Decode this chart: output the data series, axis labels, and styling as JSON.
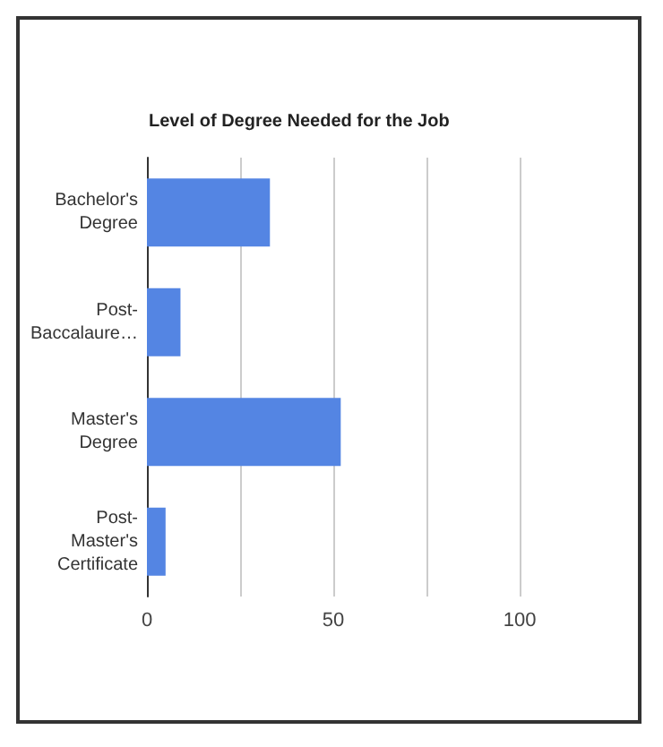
{
  "chart_data": {
    "type": "bar",
    "orientation": "horizontal",
    "title": "Level of Degree Needed for the Job",
    "categories": [
      "Bachelor's Degree",
      "Post-Baccalaure…",
      "Master's Degree",
      "Post-Master's Certificate"
    ],
    "values": [
      33,
      9,
      52,
      5
    ],
    "color": "#5485e3",
    "xlim": [
      0,
      100
    ],
    "xticks": [
      0,
      {
        "value": 25,
        "label": null
      },
      50,
      {
        "value": 75,
        "label": null
      },
      100
    ],
    "grid": "x"
  }
}
